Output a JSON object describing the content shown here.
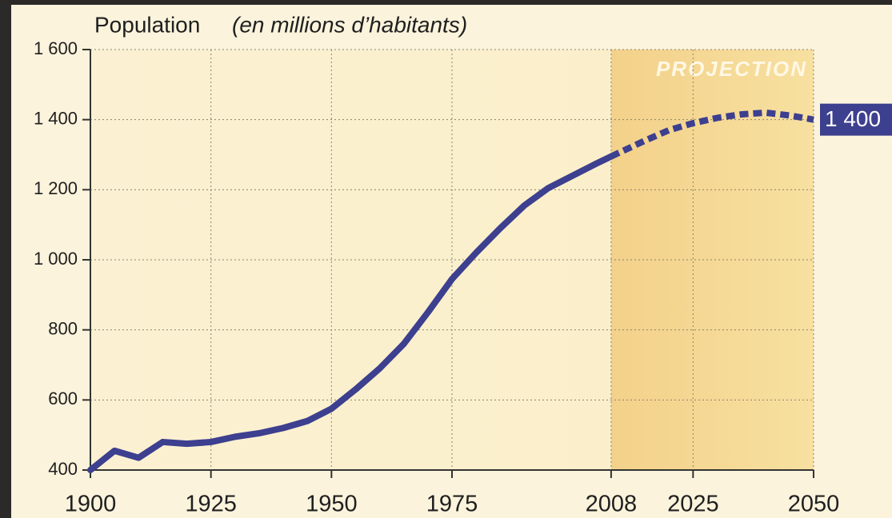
{
  "chart_data": {
    "type": "line",
    "title": "Population",
    "subtitle": "(en millions d’habitants)",
    "annotation": "PROJECTION",
    "projection_start": 2008,
    "x": [
      1900,
      1905,
      1910,
      1915,
      1920,
      1925,
      1930,
      1935,
      1940,
      1945,
      1950,
      1955,
      1960,
      1965,
      1970,
      1975,
      1980,
      1985,
      1990,
      1995,
      2000,
      2005,
      2008,
      2015,
      2020,
      2025,
      2030,
      2035,
      2040,
      2045,
      2050
    ],
    "values": [
      400,
      455,
      435,
      480,
      475,
      480,
      495,
      505,
      520,
      540,
      575,
      630,
      690,
      760,
      850,
      945,
      1020,
      1090,
      1155,
      1205,
      1240,
      1275,
      1295,
      1340,
      1370,
      1390,
      1405,
      1415,
      1420,
      1412,
      1400
    ],
    "value_labels": [
      null,
      null,
      null,
      null,
      null,
      null,
      null,
      null,
      null,
      null,
      null,
      null,
      null,
      null,
      null,
      null,
      null,
      null,
      null,
      null,
      null,
      null,
      null,
      null,
      null,
      null,
      null,
      null,
      null,
      null,
      "1 400"
    ],
    "color": "#3d3f8f",
    "xlim": [
      1900,
      2050
    ],
    "xticks": [
      1900,
      1925,
      1950,
      1975,
      2008,
      2025,
      2050
    ],
    "ylim": [
      400,
      1600
    ],
    "yticks": [
      {
        "value": 400,
        "label": "400"
      },
      {
        "value": 600,
        "label": "600"
      },
      {
        "value": 800,
        "label": "800"
      },
      {
        "value": 1000,
        "label": "1 000"
      },
      {
        "value": 1200,
        "label": "1 200"
      },
      {
        "value": 1400,
        "label": "1 400"
      },
      {
        "value": 1600,
        "label": "1 600"
      }
    ],
    "grid": true
  }
}
